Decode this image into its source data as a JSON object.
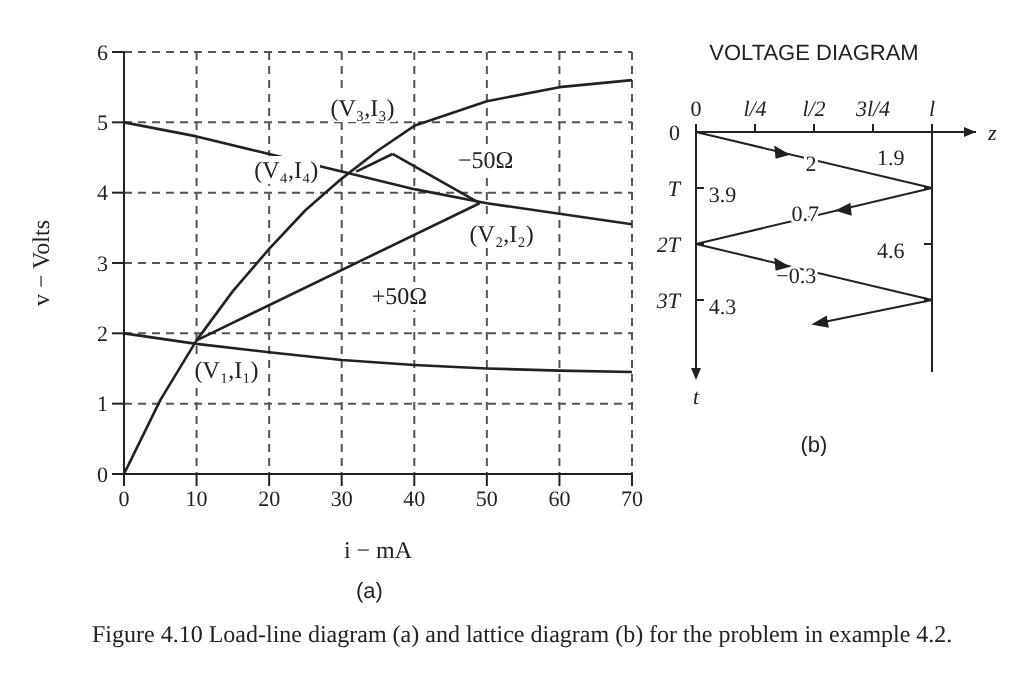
{
  "chart_data": [
    {
      "type": "line",
      "xlabel": "i − mA",
      "ylabel": "v − Volts",
      "xlim": [
        0,
        70
      ],
      "ylim": [
        0,
        6
      ],
      "xticks": [
        0,
        10,
        20,
        30,
        40,
        50,
        60,
        70
      ],
      "yticks": [
        0,
        1,
        2,
        3,
        4,
        5,
        6
      ],
      "grid": true,
      "marker": "none",
      "line_style": "solid",
      "series": [
        {
          "color": "#222222",
          "x": [
            0,
            5,
            10,
            15,
            20,
            25,
            30,
            35,
            40,
            50,
            60,
            70
          ],
          "values": [
            0,
            1.05,
            1.9,
            2.6,
            3.2,
            3.75,
            4.2,
            4.6,
            4.95,
            5.3,
            5.5,
            5.6
          ]
        },
        {
          "color": "#222222",
          "x": [
            0,
            10,
            20,
            30,
            40,
            50,
            60,
            70
          ],
          "values": [
            5,
            4.8,
            4.55,
            4.3,
            4.05,
            3.85,
            3.7,
            3.55
          ]
        },
        {
          "color": "#222222",
          "x": [
            0,
            10,
            20,
            30,
            40,
            50,
            60,
            70
          ],
          "values": [
            2,
            1.85,
            1.73,
            1.62,
            1.55,
            1.5,
            1.47,
            1.45
          ]
        },
        {
          "color": "#222222",
          "x": [
            10,
            49
          ],
          "values": [
            1.9,
            3.85
          ]
        },
        {
          "color": "#222222",
          "x": [
            49,
            37
          ],
          "values": [
            3.85,
            4.55
          ]
        },
        {
          "color": "#222222",
          "x": [
            37,
            32
          ],
          "values": [
            4.55,
            4.3
          ]
        }
      ],
      "annotations": [
        {
          "text": "(V₁,I₁)",
          "x": 10,
          "y": 1.9
        },
        {
          "text": "(V₂,I₂)",
          "x": 49,
          "y": 3.85
        },
        {
          "text": "(V₃,I₃)",
          "x": 37,
          "y": 4.55
        },
        {
          "text": "(V₄,I₄)",
          "x": 32,
          "y": 4.3
        },
        {
          "text": "+50Ω",
          "x": 30,
          "y": 2.9
        },
        {
          "text": "−50Ω",
          "x": 43,
          "y": 4.2
        },
        "(a)",
        "Figure 4.10 Load-line diagram (a) and lattice diagram (b) for the problem in example 4.2."
      ]
    },
    {
      "type": "other",
      "title": "VOLTAGE DIAGRAM",
      "categories": [
        "0",
        "l/4",
        "l/2",
        "3l/4",
        "l"
      ],
      "y_categories": [
        "0",
        "T",
        "2T",
        "3T"
      ],
      "xlabel": "z",
      "ylabel": "t",
      "annotations": [
        "2",
        "1.9",
        "3.9",
        "0.7",
        "4.6",
        "−0.3",
        "4.3",
        "(b)"
      ]
    }
  ]
}
